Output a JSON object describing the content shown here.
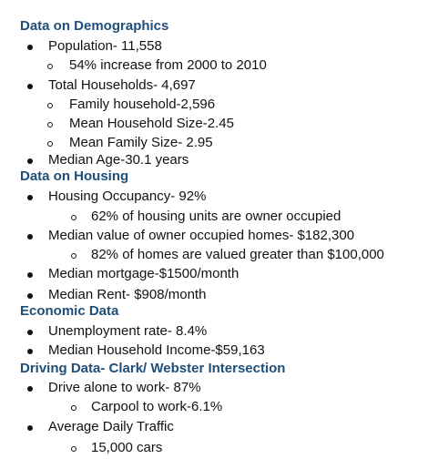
{
  "sections": [
    {
      "heading": "Data on Demographics",
      "items": [
        {
          "text": "Population- 11,558",
          "level": 1
        },
        {
          "text": "54% increase from 2000 to 2010",
          "level": 2
        },
        {
          "text": "Total Households- 4,697",
          "level": 1
        },
        {
          "text": "Family household-2,596",
          "level": 2
        },
        {
          "text": "Mean Household Size-2.45",
          "level": 2
        },
        {
          "text": "Mean Family Size- 2.95",
          "level": 2
        },
        {
          "text": "Median Age-30.1 years",
          "level": 1
        }
      ]
    },
    {
      "heading": "Data on Housing",
      "items": [
        {
          "text": "Housing Occupancy- 92%",
          "level": 1
        },
        {
          "text": "62% of housing units are owner occupied",
          "level": 3
        },
        {
          "text": "Median value of owner occupied homes- $182,300",
          "level": 1
        },
        {
          "text": "82% of homes are valued greater than $100,000",
          "level": 3
        },
        {
          "text": "Median mortgage-$1500/month",
          "level": 1
        },
        {
          "text": "Median Rent- $908/month",
          "level": 1
        }
      ]
    },
    {
      "heading": "Economic Data",
      "items": [
        {
          "text": "Unemployment rate- 8.4%",
          "level": 1
        },
        {
          "text": "Median Household Income-$59,163",
          "level": 1
        }
      ]
    },
    {
      "heading": "Driving Data- Clark/ Webster Intersection",
      "items": [
        {
          "text": "Drive alone to work- 87%",
          "level": 1
        },
        {
          "text": "Carpool to work-6.1%",
          "level": 3
        },
        {
          "text": "Average Daily Traffic",
          "level": 1
        },
        {
          "text": "15,000 cars",
          "level": 3
        }
      ]
    }
  ]
}
